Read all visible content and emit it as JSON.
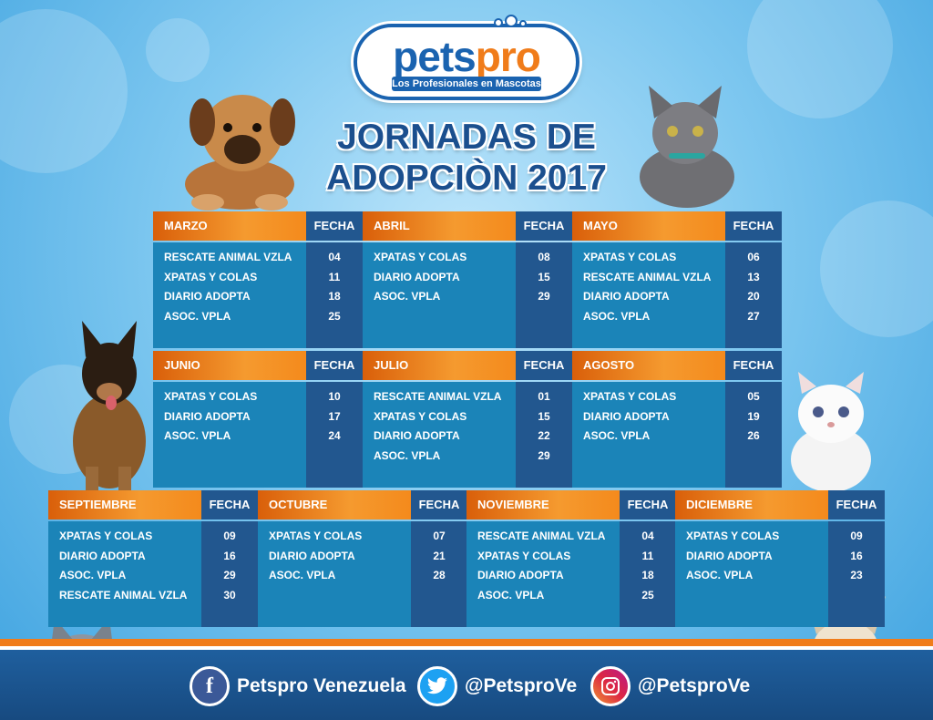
{
  "logo": {
    "word_a": "pets",
    "word_b": "pro",
    "tagline": "Los Profesionales en Mascotas"
  },
  "title": {
    "line1": "JORNADAS DE",
    "line2": "ADOPCIÒN 2017"
  },
  "fecha_label": "FECHA",
  "months": [
    {
      "name": "MARZO",
      "entries": [
        {
          "org": "RESCATE ANIMAL VZLA",
          "day": "04"
        },
        {
          "org": "XPATAS Y COLAS",
          "day": "11"
        },
        {
          "org": "DIARIO ADOPTA",
          "day": "18"
        },
        {
          "org": "ASOC. VPLA",
          "day": "25"
        }
      ]
    },
    {
      "name": "ABRIL",
      "entries": [
        {
          "org": "XPATAS Y COLAS",
          "day": "08"
        },
        {
          "org": "DIARIO ADOPTA",
          "day": "15"
        },
        {
          "org": "ASOC. VPLA",
          "day": "29"
        }
      ]
    },
    {
      "name": "MAYO",
      "entries": [
        {
          "org": "XPATAS Y COLAS",
          "day": "06"
        },
        {
          "org": "RESCATE ANIMAL VZLA",
          "day": "13"
        },
        {
          "org": "DIARIO ADOPTA",
          "day": "20"
        },
        {
          "org": "ASOC. VPLA",
          "day": "27"
        }
      ]
    },
    {
      "name": "JUNIO",
      "entries": [
        {
          "org": "XPATAS Y COLAS",
          "day": "10"
        },
        {
          "org": "DIARIO ADOPTA",
          "day": "17"
        },
        {
          "org": "ASOC. VPLA",
          "day": "24"
        }
      ]
    },
    {
      "name": "JULIO",
      "entries": [
        {
          "org": "RESCATE ANIMAL VZLA",
          "day": "01"
        },
        {
          "org": "XPATAS Y COLAS",
          "day": "15"
        },
        {
          "org": "DIARIO ADOPTA",
          "day": "22"
        },
        {
          "org": "ASOC. VPLA",
          "day": "29"
        }
      ]
    },
    {
      "name": "AGOSTO",
      "entries": [
        {
          "org": "XPATAS Y COLAS",
          "day": "05"
        },
        {
          "org": "DIARIO ADOPTA",
          "day": "19"
        },
        {
          "org": "ASOC. VPLA",
          "day": "26"
        }
      ]
    },
    {
      "name": "SEPTIEMBRE",
      "entries": [
        {
          "org": "XPATAS Y COLAS",
          "day": "09"
        },
        {
          "org": "DIARIO ADOPTA",
          "day": "16"
        },
        {
          "org": "ASOC. VPLA",
          "day": "29"
        },
        {
          "org": "RESCATE ANIMAL VZLA",
          "day": "30"
        }
      ]
    },
    {
      "name": "OCTUBRE",
      "entries": [
        {
          "org": "XPATAS Y COLAS",
          "day": "07"
        },
        {
          "org": "DIARIO ADOPTA",
          "day": "21"
        },
        {
          "org": "ASOC. VPLA",
          "day": "28"
        }
      ]
    },
    {
      "name": "NOVIEMBRE",
      "entries": [
        {
          "org": "RESCATE ANIMAL VZLA",
          "day": "04"
        },
        {
          "org": "XPATAS Y COLAS",
          "day": "11"
        },
        {
          "org": "DIARIO ADOPTA",
          "day": "18"
        },
        {
          "org": "ASOC. VPLA",
          "day": "25"
        }
      ]
    },
    {
      "name": "DICIEMBRE",
      "entries": [
        {
          "org": "XPATAS Y COLAS",
          "day": "09"
        },
        {
          "org": "DIARIO ADOPTA",
          "day": "16"
        },
        {
          "org": "ASOC. VPLA",
          "day": "23"
        }
      ]
    }
  ],
  "social": [
    {
      "icon": "facebook-icon",
      "glyph": "f",
      "label": "Petspro Venezuela",
      "color": "#3b5998"
    },
    {
      "icon": "twitter-icon",
      "glyph": "🐦",
      "label": "@PetsproVe",
      "color": "#1da1f2"
    },
    {
      "icon": "instagram-icon",
      "glyph": "◎",
      "label": "@PetsproVe",
      "color": "#c13584"
    }
  ],
  "colors": {
    "orange": "#f07c1a",
    "navy": "#22578f",
    "teal_blue": "#1b84b8",
    "title_blue": "#1b4f8e"
  }
}
